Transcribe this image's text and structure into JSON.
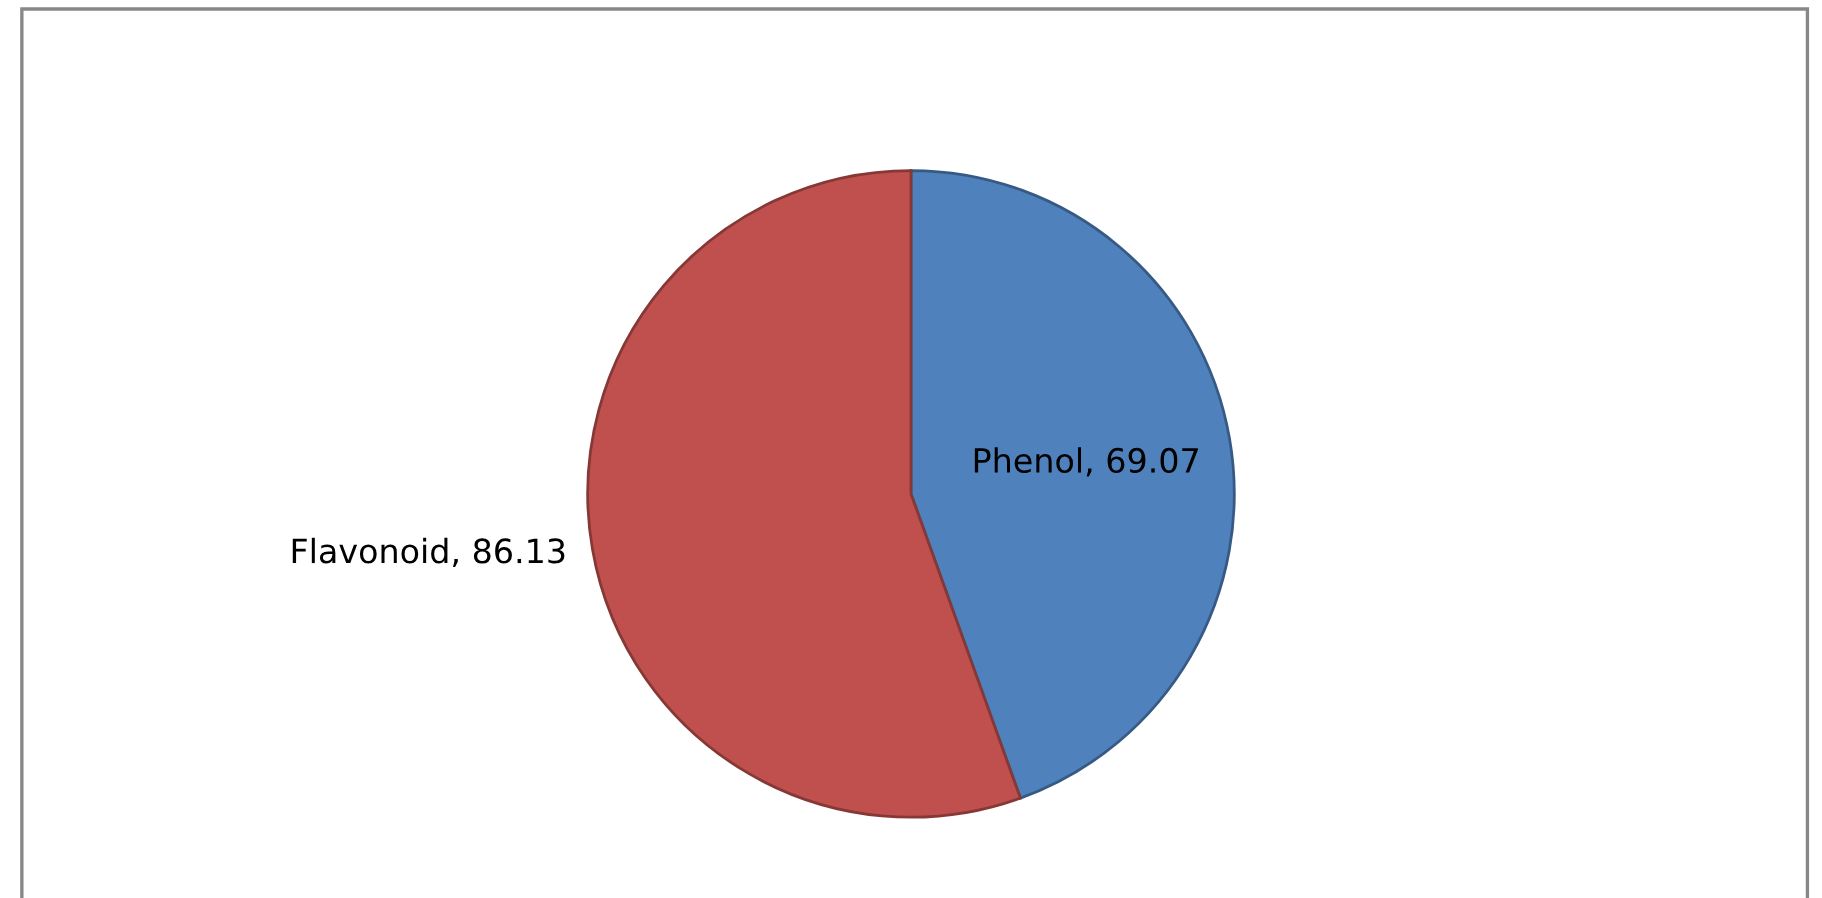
{
  "chart_data": {
    "type": "pie",
    "categories": [
      "Phenol, 69.07",
      "Flavonoid, 86.13"
    ],
    "values": [
      69.07,
      86.13
    ],
    "colors": [
      "#4f81bd",
      "#c0504d"
    ]
  }
}
